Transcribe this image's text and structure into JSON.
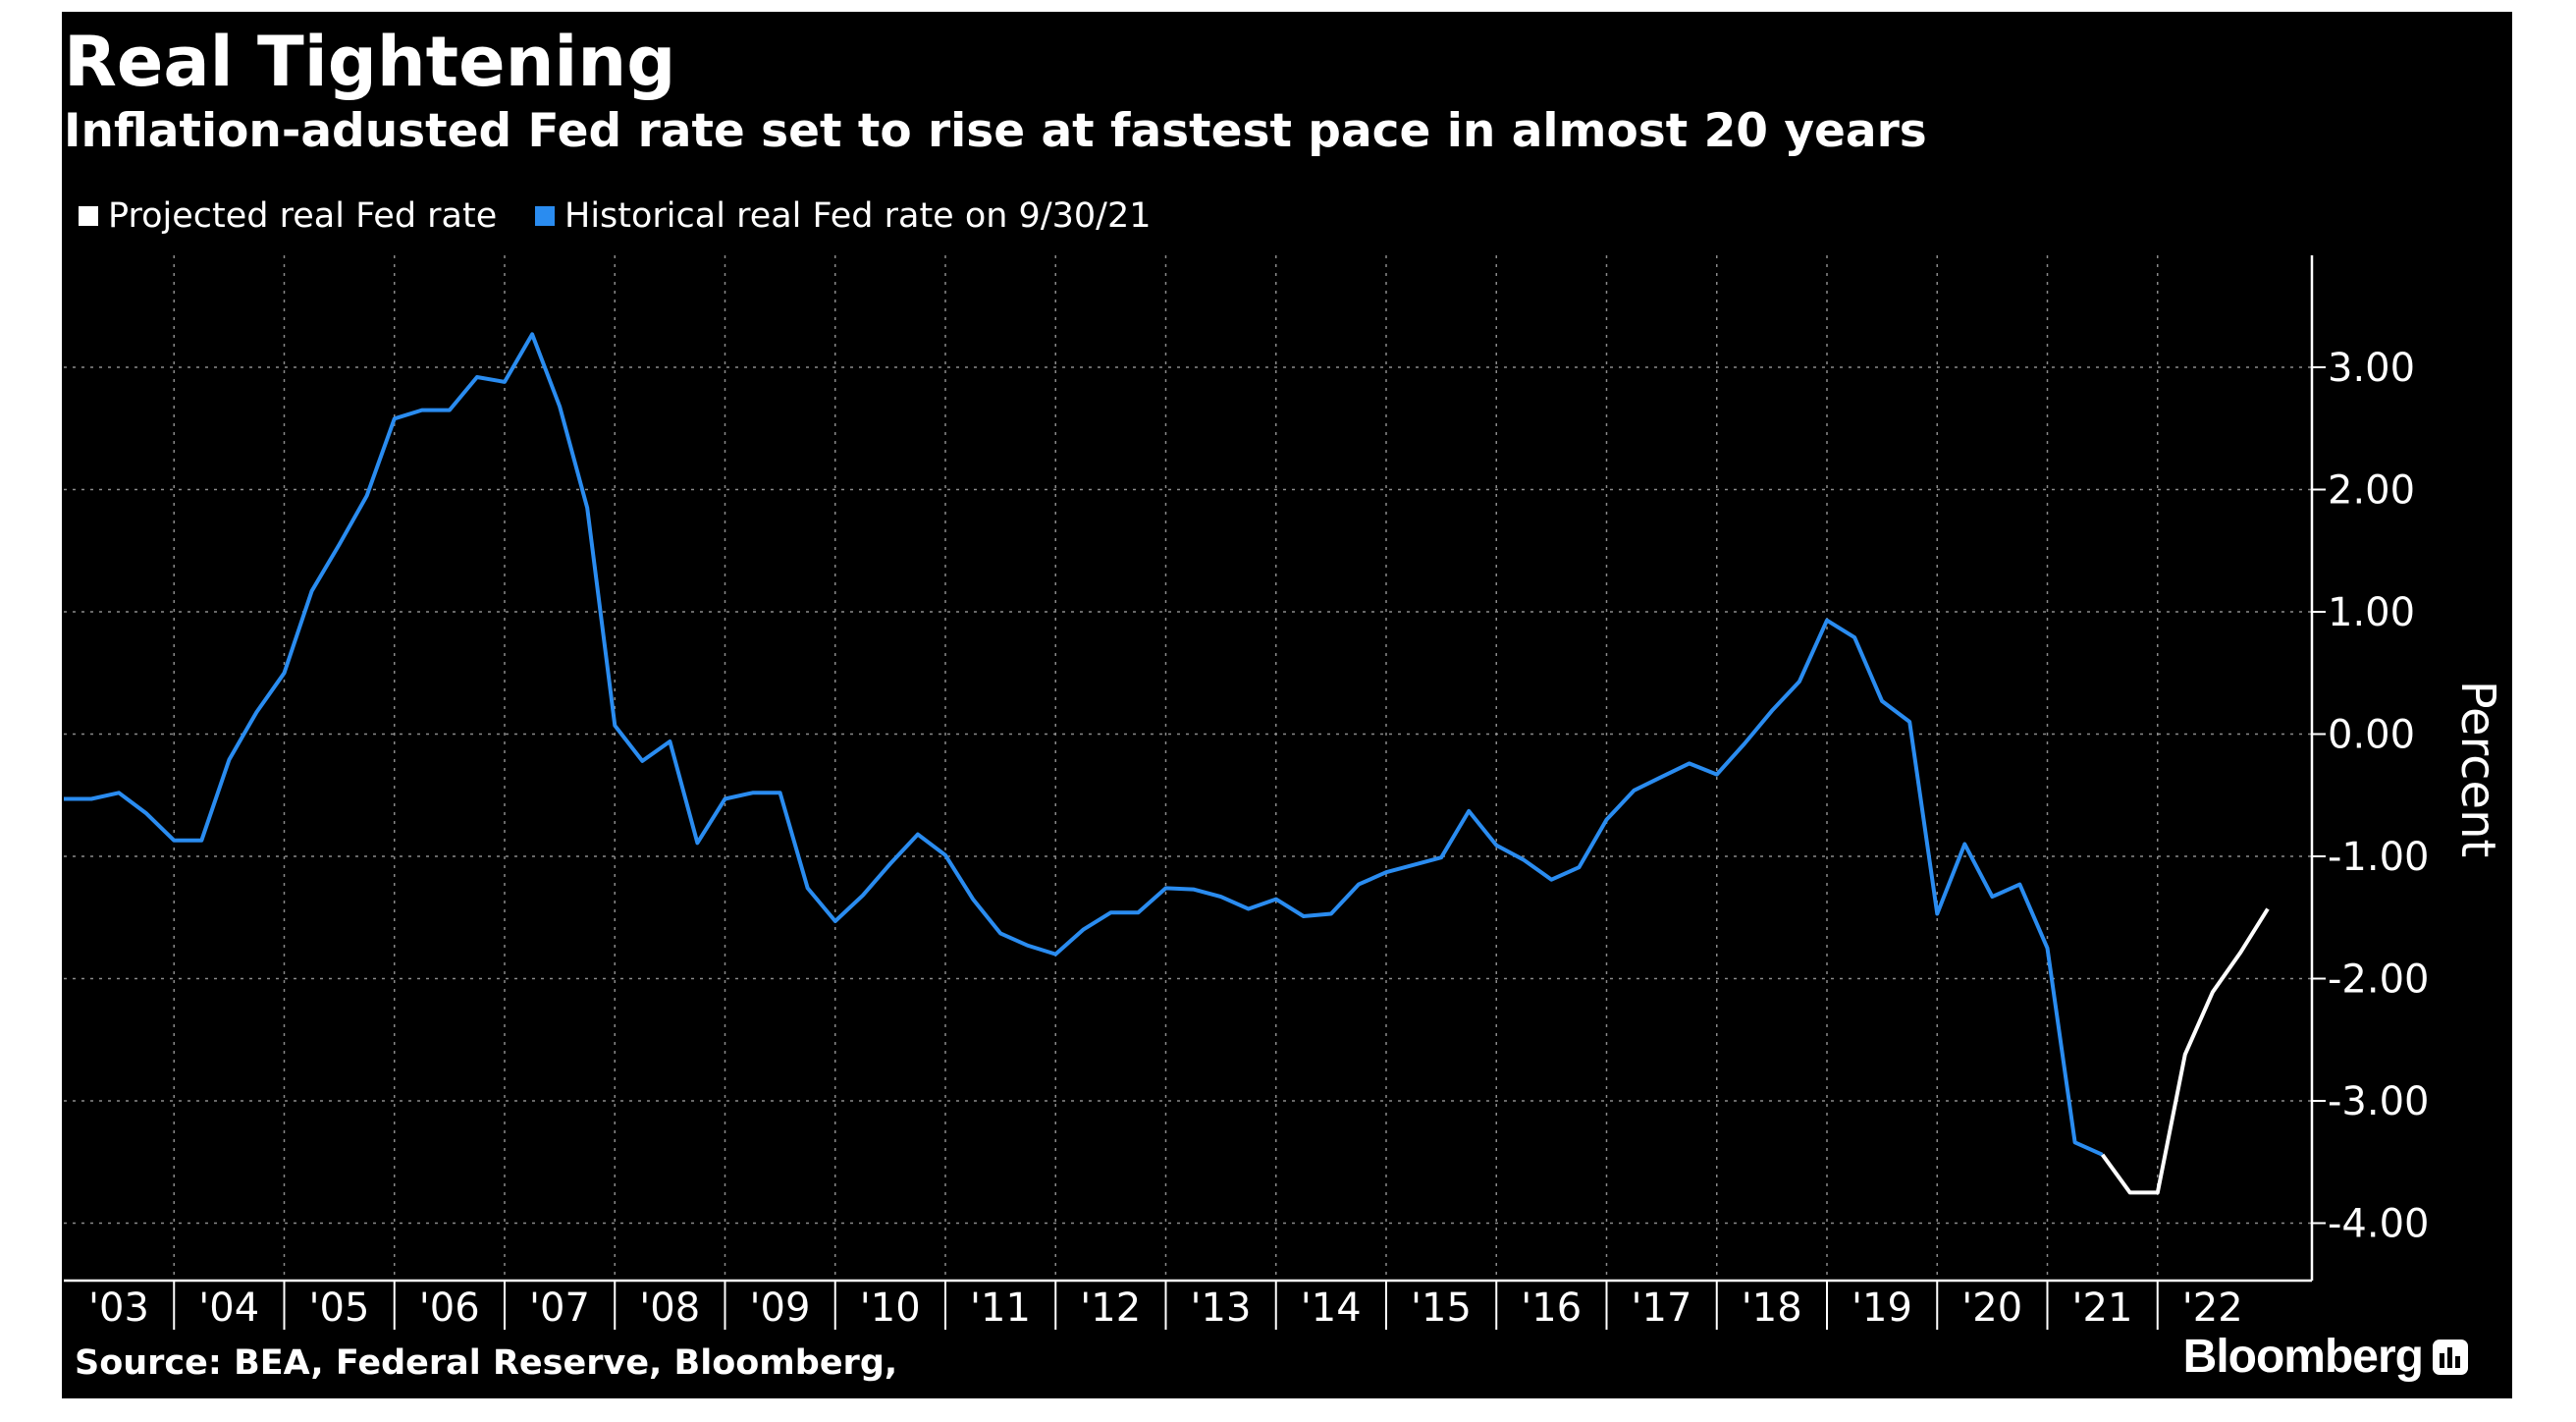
{
  "chart_data": {
    "type": "line",
    "title": "Real Tightening",
    "subtitle": "Inflation-adusted Fed rate set to rise at fastest pace in almost 20 years",
    "ylabel": "Percent",
    "xlabel": "",
    "ylim": [
      -4.4,
      3.9
    ],
    "xlim": [
      2003.0,
      2023.5
    ],
    "grid": true,
    "legend_position": "top-left",
    "x_tick_labels": [
      "'03",
      "'04",
      "'05",
      "'06",
      "'07",
      "'08",
      "'09",
      "'10",
      "'11",
      "'12",
      "'13",
      "'14",
      "'15",
      "'16",
      "'17",
      "'18",
      "'19",
      "'20",
      "'21",
      "'22"
    ],
    "y_ticks": [
      3,
      2,
      1,
      0,
      -1,
      -2,
      -3,
      -4
    ],
    "y_tick_labels": [
      "3.00",
      "2.00",
      "1.00",
      "0.00",
      "-1.00",
      "-2.00",
      "-3.00",
      "-4.00"
    ],
    "series": [
      {
        "name": "Historical real Fed rate on 9/30/21",
        "color": "#2a8cf0",
        "x": [
          2003.0,
          2003.25,
          2003.5,
          2003.75,
          2004.0,
          2004.25,
          2004.5,
          2004.75,
          2005.0,
          2005.25,
          2005.5,
          2005.75,
          2006.0,
          2006.25,
          2006.5,
          2006.75,
          2007.0,
          2007.25,
          2007.5,
          2007.75,
          2008.0,
          2008.25,
          2008.5,
          2008.75,
          2009.0,
          2009.25,
          2009.5,
          2009.75,
          2010.0,
          2010.25,
          2010.5,
          2010.75,
          2011.0,
          2011.25,
          2011.5,
          2011.75,
          2012.0,
          2012.25,
          2012.5,
          2012.75,
          2013.0,
          2013.25,
          2013.5,
          2013.75,
          2014.0,
          2014.25,
          2014.5,
          2014.75,
          2015.0,
          2015.25,
          2015.5,
          2015.75,
          2016.0,
          2016.25,
          2016.5,
          2016.75,
          2017.0,
          2017.25,
          2017.5,
          2017.75,
          2018.0,
          2018.25,
          2018.5,
          2018.75,
          2019.0,
          2019.25,
          2019.5,
          2019.75,
          2020.0,
          2020.25,
          2020.5,
          2020.75,
          2021.0,
          2021.25,
          2021.5
        ],
        "values": [
          -0.53,
          -0.53,
          -0.48,
          -0.65,
          -0.87,
          -0.87,
          -0.21,
          0.18,
          0.5,
          1.17,
          1.55,
          1.95,
          2.58,
          2.65,
          2.65,
          2.92,
          2.88,
          3.27,
          2.68,
          1.85,
          0.07,
          -0.22,
          -0.06,
          -0.89,
          -0.53,
          -0.48,
          -0.48,
          -1.26,
          -1.53,
          -1.32,
          -1.06,
          -0.82,
          -0.99,
          -1.35,
          -1.63,
          -1.73,
          -1.8,
          -1.6,
          -1.46,
          -1.46,
          -1.26,
          -1.27,
          -1.33,
          -1.43,
          -1.35,
          -1.49,
          -1.47,
          -1.23,
          -1.13,
          -1.07,
          -1.01,
          -0.63,
          -0.91,
          -1.03,
          -1.19,
          -1.09,
          -0.7,
          -0.46,
          -0.35,
          -0.24,
          -0.33,
          -0.08,
          0.19,
          0.43,
          0.93,
          0.79,
          0.27,
          0.1,
          -1.47,
          -0.9,
          -1.33,
          -1.23,
          -1.75,
          -3.34,
          -3.44
        ]
      },
      {
        "name": "Projected real Fed rate",
        "color": "#ffffff",
        "x": [
          2021.5,
          2021.75,
          2022.0,
          2022.25,
          2022.5,
          2022.75,
          2023.0
        ],
        "values": [
          -3.44,
          -3.75,
          -3.75,
          -2.62,
          -2.11,
          -1.79,
          -1.43
        ]
      }
    ]
  },
  "source_text": "Source: BEA, Federal Reserve, Bloomberg,",
  "brand": {
    "name": "Bloomberg",
    "icon": "bloomberg-bars-icon"
  },
  "colors": {
    "background": "#000000",
    "text": "#ffffff",
    "grid": "#8a8a8a",
    "historical": "#2a8cf0",
    "projected": "#ffffff"
  }
}
